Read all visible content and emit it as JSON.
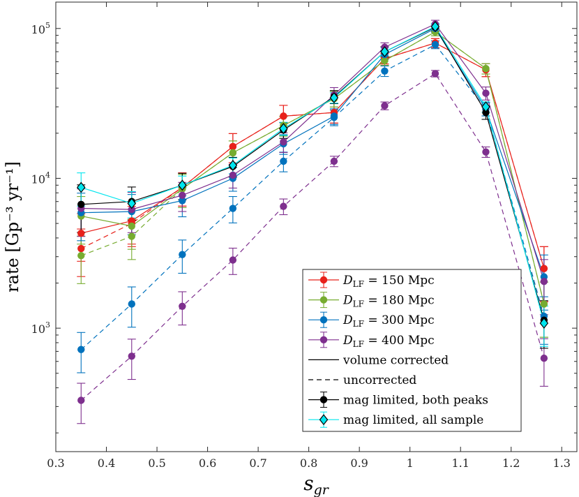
{
  "chart_data": {
    "type": "line",
    "title": "",
    "xlabel_base": "s",
    "xlabel_sub": "gr",
    "ylabel": "rate [Gp⁻³ yr⁻¹]",
    "xlim": [
      0.3,
      1.33
    ],
    "ylim": [
      150,
      150000
    ],
    "yscale": "log",
    "grid": false,
    "xticks": [
      "0.3",
      "0.4",
      "0.5",
      "0.6",
      "0.7",
      "0.8",
      "0.9",
      "1",
      "1.1",
      "1.2",
      "1.3"
    ],
    "xtick_values": [
      0.3,
      0.4,
      0.5,
      0.6,
      0.7,
      0.8,
      0.9,
      1.0,
      1.1,
      1.2,
      1.3
    ],
    "ytick_values": [
      1000,
      10000,
      100000
    ],
    "yticks": [
      "10",
      "10",
      "10"
    ],
    "ytick_exponents": [
      "3",
      "4",
      "5"
    ],
    "x": [
      0.35,
      0.45,
      0.55,
      0.65,
      0.75,
      0.85,
      0.95,
      1.05,
      1.15,
      1.265
    ],
    "series": [
      {
        "name": "D_LF = 150 Mpc",
        "label_main": "D",
        "label_sub": "LF",
        "label_rest": " = 150 Mpc",
        "color": "#e8211b",
        "style": "solid",
        "marker": "circle",
        "values": [
          4300,
          5200,
          8700,
          16300,
          26000,
          27500,
          63000,
          80000,
          53000,
          2500
        ],
        "err": [
          0.35,
          0.3,
          0.25,
          0.22,
          0.18,
          0.15,
          0.08,
          0.07,
          0.1,
          0.4
        ]
      },
      {
        "name": "D_LF = 150 Mpc (uncorrected)",
        "color": "#e8211b",
        "style": "dashed",
        "marker": "circle",
        "values": [
          3400,
          5000,
          8700,
          16300,
          26000,
          27500,
          63000,
          80000,
          53000,
          2500
        ],
        "err": [
          0.35,
          0.3,
          0.25,
          0.22,
          0.18,
          0.15,
          0.08,
          0.07,
          0.1,
          0.4
        ]
      },
      {
        "name": "D_LF = 180 Mpc",
        "label_main": "D",
        "label_sub": "LF",
        "label_rest": " = 180 Mpc",
        "color": "#77ac30",
        "style": "solid",
        "marker": "circle",
        "values": [
          5600,
          4800,
          8500,
          14800,
          22500,
          34000,
          61000,
          95000,
          54000,
          1450
        ],
        "err": [
          0.35,
          0.3,
          0.25,
          0.2,
          0.15,
          0.12,
          0.07,
          0.06,
          0.08,
          0.4
        ]
      },
      {
        "name": "D_LF = 180 Mpc (uncorrected)",
        "color": "#77ac30",
        "style": "dashed",
        "marker": "circle",
        "values": [
          3050,
          4100,
          8500,
          14800,
          22500,
          34000,
          61000,
          95000,
          54000,
          1450
        ],
        "err": [
          0.35,
          0.3,
          0.25,
          0.2,
          0.15,
          0.12,
          0.07,
          0.06,
          0.08,
          0.4
        ]
      },
      {
        "name": "D_LF = 300 Mpc",
        "label_main": "D",
        "label_sub": "LF",
        "label_rest": " = 300 Mpc",
        "color": "#0072bd",
        "style": "solid",
        "marker": "circle",
        "values": [
          5900,
          6000,
          7100,
          10000,
          17000,
          26000,
          67000,
          100000,
          29000,
          2200
        ],
        "err": [
          0.35,
          0.3,
          0.22,
          0.18,
          0.15,
          0.12,
          0.07,
          0.06,
          0.1,
          0.4
        ]
      },
      {
        "name": "D_LF = 300 Mpc (uncorrected)",
        "color": "#0072bd",
        "style": "dashed",
        "marker": "circle",
        "values": [
          720,
          1450,
          3100,
          6300,
          13000,
          25500,
          52000,
          78000,
          29000,
          1200
        ],
        "err": [
          0.3,
          0.3,
          0.25,
          0.2,
          0.15,
          0.12,
          0.08,
          0.06,
          0.1,
          0.35
        ]
      },
      {
        "name": "D_LF = 400 Mpc",
        "label_main": "D",
        "label_sub": "LF",
        "label_rest": " = 400 Mpc",
        "color": "#7e2f8e",
        "style": "solid",
        "marker": "circle",
        "values": [
          6300,
          6200,
          7700,
          10500,
          17500,
          36000,
          75000,
          107000,
          37000,
          2050
        ],
        "err": [
          0.35,
          0.3,
          0.22,
          0.18,
          0.15,
          0.12,
          0.07,
          0.06,
          0.1,
          0.4
        ]
      },
      {
        "name": "D_LF = 400 Mpc (uncorrected)",
        "color": "#7e2f8e",
        "style": "dashed",
        "marker": "circle",
        "values": [
          330,
          650,
          1400,
          2850,
          6500,
          13000,
          30500,
          50000,
          15000,
          630
        ],
        "err": [
          0.3,
          0.3,
          0.25,
          0.2,
          0.12,
          0.08,
          0.06,
          0.05,
          0.08,
          0.35
        ]
      },
      {
        "name": "mag limited, both peaks",
        "color": "#000000",
        "style": "solid",
        "marker": "circle",
        "values": [
          6700,
          7000,
          9000,
          12000,
          21000,
          35000,
          70000,
          102000,
          27500,
          1130
        ],
        "err": [
          0.35,
          0.25,
          0.2,
          0.15,
          0.12,
          0.1,
          0.08,
          0.06,
          0.1,
          0.35
        ]
      },
      {
        "name": "mag limited, all sample",
        "color": "#00e5ee",
        "style": "solid",
        "marker": "diamond",
        "values": [
          8700,
          6800,
          9000,
          12200,
          21500,
          34500,
          70000,
          103000,
          30000,
          1080
        ],
        "err": [
          0.25,
          0.2,
          0.15,
          0.12,
          0.1,
          0.08,
          0.06,
          0.05,
          0.08,
          0.3
        ]
      }
    ],
    "legend": {
      "placement": "bottom-right",
      "entries": [
        {
          "kind": "series",
          "color": "#e8211b",
          "marker": "circle",
          "main": "D",
          "sub": "LF",
          "rest": " = 150 Mpc"
        },
        {
          "kind": "series",
          "color": "#77ac30",
          "marker": "circle",
          "main": "D",
          "sub": "LF",
          "rest": " = 180 Mpc"
        },
        {
          "kind": "series",
          "color": "#0072bd",
          "marker": "circle",
          "main": "D",
          "sub": "LF",
          "rest": " = 300 Mpc"
        },
        {
          "kind": "series",
          "color": "#7e2f8e",
          "marker": "circle",
          "main": "D",
          "sub": "LF",
          "rest": " = 400 Mpc"
        },
        {
          "kind": "line",
          "color": "#000000",
          "style": "solid",
          "text": "volume corrected"
        },
        {
          "kind": "line",
          "color": "#000000",
          "style": "dashed",
          "text": "uncorrected"
        },
        {
          "kind": "series",
          "color": "#000000",
          "marker": "circle",
          "text": "mag limited, both peaks"
        },
        {
          "kind": "series",
          "color": "#00e5ee",
          "marker": "diamond",
          "text": "mag limited, all sample"
        }
      ]
    }
  }
}
